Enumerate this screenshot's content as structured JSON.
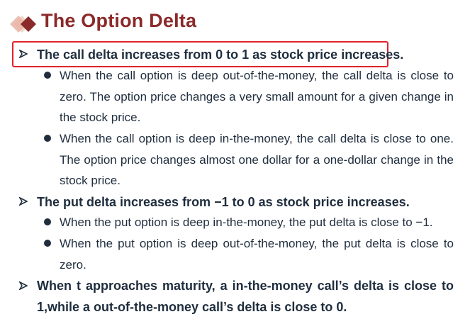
{
  "title": "The Option Delta",
  "bullets": [
    {
      "text": "The call delta increases from 0 to 1 as stock price increases.",
      "highlighted": true,
      "subs": [
        "When the call option is deep out-of-the-money, the call delta is close to zero. The option price changes a very small amount for a given change in the stock price.",
        "When the call option is deep in-the-money, the call delta is close to one. The option price changes almost one dollar for a one-dollar change in the stock price."
      ]
    },
    {
      "text": "The put delta increases from −1 to 0 as stock price increases.",
      "highlighted": false,
      "subs": [
        "When the put option is deep in-the-money, the put delta is close to −1.",
        "When the put option is deep out-of-the-money, the put delta is close to zero."
      ]
    },
    {
      "text": "When t approaches maturity, a in-the-money call’s delta is close to 1,while a out-of-the-money call’s delta is close to 0.",
      "highlighted": false,
      "subs": []
    }
  ],
  "colors": {
    "title": "#8b2a2a",
    "highlight_border": "#e0242b",
    "text": "#1f2d3d"
  },
  "icons": {
    "logo": "diamond-logo-icon",
    "bullet": "arrowhead-bullet-icon",
    "sub_bullet": "dot-bullet-icon"
  }
}
